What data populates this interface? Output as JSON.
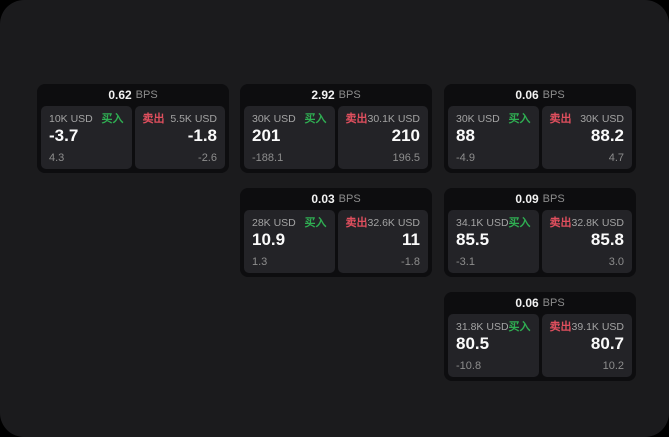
{
  "page": {
    "background": "#000000",
    "surface_background": "#1b1b1d",
    "card_background": "#0d0d0f",
    "panel_background": "#232327"
  },
  "colors": {
    "buy_green": "#2fae52",
    "sell_red": "#e04f5e",
    "price_text": "#fafafa",
    "muted_text": "#8d8d8d"
  },
  "labels": {
    "bps": "BPS",
    "buy": "买入",
    "sell": "卖出"
  },
  "cards": [
    {
      "bps": "0.62",
      "buy": {
        "amount": "10K USD",
        "price": "-3.7",
        "delta": "4.3"
      },
      "sell": {
        "amount": "5.5K USD",
        "price": "-1.8",
        "delta": "-2.6"
      }
    },
    {
      "bps": "2.92",
      "buy": {
        "amount": "30K USD",
        "price": "201",
        "delta": "-188.1"
      },
      "sell": {
        "amount": "30.1K USD",
        "price": "210",
        "delta": "196.5"
      }
    },
    {
      "bps": "0.06",
      "buy": {
        "amount": "30K USD",
        "price": "88",
        "delta": "-4.9"
      },
      "sell": {
        "amount": "30K USD",
        "price": "88.2",
        "delta": "4.7"
      }
    },
    {
      "bps": "0.03",
      "buy": {
        "amount": "28K USD",
        "price": "10.9",
        "delta": "1.3"
      },
      "sell": {
        "amount": "32.6K USD",
        "price": "11",
        "delta": "-1.8"
      }
    },
    {
      "bps": "0.09",
      "buy": {
        "amount": "34.1K USD",
        "price": "85.5",
        "delta": "-3.1"
      },
      "sell": {
        "amount": "32.8K USD",
        "price": "85.8",
        "delta": "3.0"
      }
    },
    {
      "bps": "0.06",
      "buy": {
        "amount": "31.8K USD",
        "price": "80.5",
        "delta": "-10.8"
      },
      "sell": {
        "amount": "39.1K USD",
        "price": "80.7",
        "delta": "10.2"
      }
    }
  ]
}
